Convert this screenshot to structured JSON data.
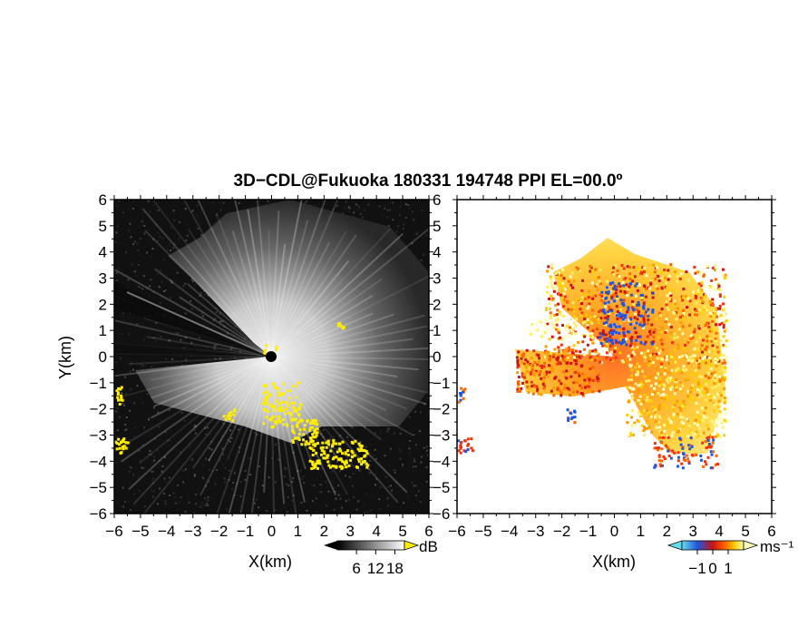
{
  "title": "3D−CDL@Fukuoka 180331 194748 PPI EL=00.0º",
  "chart_data": [
    {
      "type": "heatmap",
      "field": "SNR",
      "xlabel": "X(km)",
      "ylabel": "Y(km)",
      "xlim": [
        -6,
        6
      ],
      "ylim": [
        -6,
        6
      ],
      "xticks": [
        "−6",
        "−5",
        "−4",
        "−3",
        "−2",
        "−1",
        "0",
        "1",
        "2",
        "3",
        "4",
        "5",
        "6"
      ],
      "yticks": [
        "6",
        "5",
        "4",
        "3",
        "2",
        "1",
        "0",
        "−1",
        "−2",
        "−3",
        "−4",
        "−5",
        "−6"
      ],
      "colorbar": {
        "unit": "dB",
        "ticks": [
          "6",
          "12",
          "18"
        ],
        "range": [
          0,
          21
        ],
        "colors": [
          "#000000",
          "#ffffff"
        ],
        "over_color": "#ffee00"
      }
    },
    {
      "type": "heatmap",
      "field": "Doppler velocity",
      "xlabel": "X(km)",
      "xlim": [
        -6,
        6
      ],
      "ylim": [
        -6,
        6
      ],
      "xticks": [
        "−6",
        "−5",
        "−4",
        "−3",
        "−2",
        "−1",
        "0",
        "1",
        "2",
        "3",
        "4",
        "5",
        "6"
      ],
      "colorbar": {
        "unit": "ms⁻¹",
        "ticks": [
          "−1",
          "0",
          "1"
        ],
        "range": [
          -2,
          2
        ],
        "colors": [
          "#66ddee",
          "#2255dd",
          "#cc1111",
          "#ff6600",
          "#ffcc00",
          "#ffffbb"
        ]
      }
    }
  ]
}
